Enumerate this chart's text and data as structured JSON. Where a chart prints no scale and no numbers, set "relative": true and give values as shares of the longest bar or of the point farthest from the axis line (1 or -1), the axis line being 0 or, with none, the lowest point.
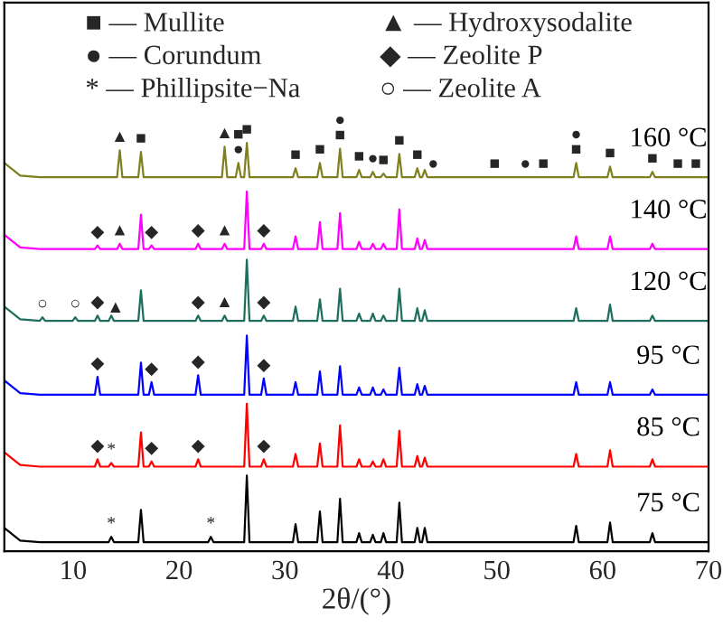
{
  "chart_data": {
    "type": "line",
    "relative": true,
    "xlabel": "2θ/(°)",
    "xlim": [
      3.5,
      70
    ],
    "xticks": [
      10,
      20,
      30,
      40,
      50,
      60,
      70
    ],
    "tick_labels": "x",
    "grid": false,
    "x": [
      3.5,
      5,
      6.85,
      7.1,
      7.35,
      9.95,
      10.2,
      10.45,
      12.05,
      12.3,
      12.55,
      13.35,
      13.6,
      13.85,
      14.15,
      14.4,
      14.65,
      16.15,
      16.4,
      16.65,
      17.15,
      17.4,
      17.65,
      21.55,
      21.8,
      22.05,
      22.75,
      23.0,
      23.25,
      24.05,
      24.3,
      24.55,
      25.35,
      25.6,
      25.85,
      26.15,
      26.4,
      26.65,
      27.75,
      28.0,
      28.25,
      30.75,
      31.0,
      31.25,
      33.05,
      33.3,
      33.55,
      34.95,
      35.2,
      35.45,
      36.75,
      37.0,
      37.25,
      38.05,
      38.3,
      38.55,
      39.05,
      39.3,
      39.55,
      40.55,
      40.8,
      41.05,
      42.25,
      42.5,
      42.75,
      42.95,
      43.2,
      43.45,
      57.25,
      57.5,
      57.75,
      60.45,
      60.7,
      60.95,
      64.45,
      64.7,
      64.95,
      70
    ],
    "series": [
      {
        "name": "160 °C",
        "color": "#7f7f1e",
        "values": [
          0.951,
          0.92,
          0.916,
          0.916,
          0.916,
          0.916,
          0.916,
          0.916,
          0.916,
          0.916,
          0.916,
          0.916,
          0.916,
          0.916,
          0.916,
          0.982,
          0.916,
          0.916,
          0.978,
          0.916,
          0.916,
          0.916,
          0.916,
          0.916,
          0.916,
          0.916,
          0.916,
          0.916,
          0.916,
          0.916,
          0.991,
          0.916,
          0.916,
          0.951,
          0.916,
          0.916,
          1.0,
          0.916,
          0.916,
          0.916,
          0.916,
          0.916,
          0.938,
          0.916,
          0.916,
          0.951,
          0.916,
          0.916,
          0.986,
          0.916,
          0.916,
          0.934,
          0.916,
          0.916,
          0.929,
          0.916,
          0.916,
          0.925,
          0.916,
          0.916,
          0.973,
          0.916,
          0.916,
          0.938,
          0.916,
          0.916,
          0.934,
          0.916,
          0.916,
          0.951,
          0.916,
          0.916,
          0.942,
          0.916,
          0.916,
          0.929,
          0.916,
          0.916
        ]
      },
      {
        "name": "140 °C",
        "color": "#ff00ff",
        "values": [
          0.775,
          0.744,
          0.74,
          0.74,
          0.74,
          0.74,
          0.74,
          0.74,
          0.74,
          0.749,
          0.74,
          0.74,
          0.74,
          0.74,
          0.74,
          0.753,
          0.74,
          0.74,
          0.824,
          0.74,
          0.74,
          0.749,
          0.74,
          0.74,
          0.753,
          0.74,
          0.74,
          0.74,
          0.74,
          0.74,
          0.753,
          0.74,
          0.74,
          0.74,
          0.74,
          0.74,
          0.881,
          0.74,
          0.74,
          0.753,
          0.74,
          0.74,
          0.771,
          0.74,
          0.74,
          0.806,
          0.74,
          0.74,
          0.828,
          0.74,
          0.74,
          0.758,
          0.74,
          0.74,
          0.753,
          0.74,
          0.74,
          0.753,
          0.74,
          0.74,
          0.837,
          0.74,
          0.74,
          0.766,
          0.74,
          0.74,
          0.762,
          0.74,
          0.74,
          0.771,
          0.74,
          0.74,
          0.771,
          0.74,
          0.74,
          0.753,
          0.74,
          0.74
        ]
      },
      {
        "name": "120 °C",
        "color": "#1e6e5e",
        "values": [
          0.599,
          0.568,
          0.564,
          0.573,
          0.564,
          0.564,
          0.573,
          0.564,
          0.564,
          0.577,
          0.564,
          0.564,
          0.577,
          0.564,
          0.564,
          0.564,
          0.564,
          0.564,
          0.639,
          0.564,
          0.564,
          0.564,
          0.564,
          0.564,
          0.577,
          0.564,
          0.564,
          0.564,
          0.564,
          0.564,
          0.577,
          0.564,
          0.564,
          0.564,
          0.564,
          0.564,
          0.714,
          0.564,
          0.564,
          0.577,
          0.564,
          0.564,
          0.599,
          0.564,
          0.564,
          0.617,
          0.564,
          0.564,
          0.643,
          0.564,
          0.564,
          0.582,
          0.564,
          0.564,
          0.582,
          0.564,
          0.564,
          0.577,
          0.564,
          0.564,
          0.643,
          0.564,
          0.564,
          0.595,
          0.564,
          0.564,
          0.59,
          0.564,
          0.564,
          0.595,
          0.564,
          0.564,
          0.604,
          0.564,
          0.564,
          0.577,
          0.564,
          0.564
        ]
      },
      {
        "name": "95 °C",
        "color": "#0000ff",
        "values": [
          0.418,
          0.387,
          0.383,
          0.383,
          0.383,
          0.383,
          0.383,
          0.383,
          0.383,
          0.427,
          0.383,
          0.383,
          0.383,
          0.383,
          0.383,
          0.383,
          0.383,
          0.383,
          0.462,
          0.383,
          0.383,
          0.414,
          0.383,
          0.383,
          0.431,
          0.383,
          0.383,
          0.383,
          0.383,
          0.383,
          0.383,
          0.383,
          0.383,
          0.383,
          0.383,
          0.383,
          0.528,
          0.383,
          0.383,
          0.423,
          0.383,
          0.383,
          0.414,
          0.383,
          0.383,
          0.44,
          0.383,
          0.383,
          0.453,
          0.383,
          0.383,
          0.401,
          0.383,
          0.383,
          0.401,
          0.383,
          0.383,
          0.396,
          0.383,
          0.383,
          0.449,
          0.383,
          0.383,
          0.409,
          0.383,
          0.383,
          0.405,
          0.383,
          0.383,
          0.414,
          0.383,
          0.383,
          0.414,
          0.383,
          0.383,
          0.396,
          0.383,
          0.383
        ]
      },
      {
        "name": "85 °C",
        "color": "#ff0000",
        "values": [
          0.242,
          0.211,
          0.207,
          0.207,
          0.207,
          0.207,
          0.207,
          0.207,
          0.207,
          0.225,
          0.207,
          0.207,
          0.216,
          0.207,
          0.207,
          0.207,
          0.207,
          0.207,
          0.291,
          0.207,
          0.207,
          0.22,
          0.207,
          0.207,
          0.225,
          0.207,
          0.207,
          0.207,
          0.207,
          0.207,
          0.207,
          0.207,
          0.207,
          0.207,
          0.207,
          0.207,
          0.361,
          0.207,
          0.207,
          0.225,
          0.207,
          0.207,
          0.238,
          0.207,
          0.207,
          0.264,
          0.207,
          0.207,
          0.308,
          0.207,
          0.207,
          0.225,
          0.207,
          0.207,
          0.22,
          0.207,
          0.207,
          0.225,
          0.207,
          0.207,
          0.295,
          0.207,
          0.207,
          0.233,
          0.207,
          0.207,
          0.229,
          0.207,
          0.207,
          0.238,
          0.207,
          0.207,
          0.247,
          0.207,
          0.207,
          0.225,
          0.207,
          0.207
        ]
      },
      {
        "name": "75 °C",
        "color": "#000000",
        "values": [
          0.057,
          0.026,
          0.022,
          0.022,
          0.022,
          0.022,
          0.022,
          0.022,
          0.022,
          0.022,
          0.022,
          0.022,
          0.035,
          0.022,
          0.022,
          0.022,
          0.022,
          0.022,
          0.101,
          0.022,
          0.022,
          0.022,
          0.022,
          0.022,
          0.022,
          0.022,
          0.022,
          0.035,
          0.022,
          0.022,
          0.022,
          0.022,
          0.022,
          0.022,
          0.022,
          0.022,
          0.185,
          0.022,
          0.022,
          0.022,
          0.022,
          0.022,
          0.066,
          0.022,
          0.022,
          0.097,
          0.022,
          0.022,
          0.128,
          0.022,
          0.022,
          0.044,
          0.022,
          0.022,
          0.04,
          0.022,
          0.022,
          0.044,
          0.022,
          0.022,
          0.119,
          0.022,
          0.022,
          0.057,
          0.022,
          0.022,
          0.057,
          0.022,
          0.022,
          0.062,
          0.022,
          0.022,
          0.07,
          0.022,
          0.022,
          0.044,
          0.022,
          0.022
        ]
      }
    ],
    "annotations": [
      "■ — Mullite",
      "▲ — Hydroxysodalite",
      "● — Corundum",
      "◆ — Zeolite P",
      "* — Phillipsite−Na",
      "○ — Zeolite A",
      {
        "text": "▲",
        "x": 14.4,
        "y": 0.982
      },
      {
        "text": "■",
        "x": 16.4,
        "y": 0.978
      },
      {
        "text": "▲",
        "x": 24.3,
        "y": 0.991
      },
      {
        "text": "●",
        "x": 25.6,
        "y": 0.951
      },
      {
        "text": "■",
        "x": 25.6,
        "y": 0.951
      },
      {
        "text": "■",
        "x": 26.4,
        "y": 1.0
      },
      {
        "text": "■",
        "x": 31.0,
        "y": 0.938
      },
      {
        "text": "■",
        "x": 33.3,
        "y": 0.951
      },
      {
        "text": "■",
        "x": 35.2,
        "y": 0.986
      },
      {
        "text": "●",
        "x": 35.2,
        "y": 0.986
      },
      {
        "text": "■",
        "x": 37.0,
        "y": 0.934
      },
      {
        "text": "●",
        "x": 38.3,
        "y": 0.929
      },
      {
        "text": "■",
        "x": 39.3,
        "y": 0.925
      },
      {
        "text": "■",
        "x": 40.8,
        "y": 0.973
      },
      {
        "text": "■",
        "x": 42.5,
        "y": 0.938
      },
      {
        "text": "●",
        "x": 44.0,
        "y": 0.916
      },
      {
        "text": "■",
        "x": 49.8,
        "y": 0.916
      },
      {
        "text": "●",
        "x": 52.7,
        "y": 0.916
      },
      {
        "text": "■",
        "x": 54.4,
        "y": 0.916
      },
      {
        "text": "■",
        "x": 57.5,
        "y": 0.951
      },
      {
        "text": "●",
        "x": 57.5,
        "y": 0.951
      },
      {
        "text": "■",
        "x": 60.7,
        "y": 0.942
      },
      {
        "text": "■",
        "x": 64.7,
        "y": 0.929
      },
      {
        "text": "■",
        "x": 67.1,
        "y": 0.916
      },
      {
        "text": "■",
        "x": 68.8,
        "y": 0.916
      },
      {
        "text": "◆",
        "x": 12.3,
        "y": 0.749
      },
      {
        "text": "▲",
        "x": 14.4,
        "y": 0.753
      },
      {
        "text": "◆",
        "x": 17.4,
        "y": 0.749
      },
      {
        "text": "◆",
        "x": 21.8,
        "y": 0.753
      },
      {
        "text": "▲",
        "x": 24.3,
        "y": 0.753
      },
      {
        "text": "◆",
        "x": 28.0,
        "y": 0.753
      },
      {
        "text": "○",
        "x": 7.1,
        "y": 0.573
      },
      {
        "text": "○",
        "x": 10.2,
        "y": 0.573
      },
      {
        "text": "◆",
        "x": 12.3,
        "y": 0.577
      },
      {
        "text": "▲",
        "x": 14.0,
        "y": 0.564
      },
      {
        "text": "◆",
        "x": 21.8,
        "y": 0.577
      },
      {
        "text": "▲",
        "x": 24.3,
        "y": 0.577
      },
      {
        "text": "◆",
        "x": 28.0,
        "y": 0.577
      },
      {
        "text": "◆",
        "x": 12.3,
        "y": 0.427
      },
      {
        "text": "◆",
        "x": 17.4,
        "y": 0.414
      },
      {
        "text": "◆",
        "x": 21.8,
        "y": 0.431
      },
      {
        "text": "◆",
        "x": 28.0,
        "y": 0.423
      },
      {
        "text": "◆",
        "x": 12.3,
        "y": 0.225
      },
      {
        "text": "*",
        "x": 13.6,
        "y": 0.216
      },
      {
        "text": "◆",
        "x": 17.4,
        "y": 0.22
      },
      {
        "text": "◆",
        "x": 21.8,
        "y": 0.225
      },
      {
        "text": "◆",
        "x": 28.0,
        "y": 0.225
      },
      {
        "text": "*",
        "x": 13.6,
        "y": 0.035
      },
      {
        "text": "*",
        "x": 23.0,
        "y": 0.035
      }
    ]
  }
}
